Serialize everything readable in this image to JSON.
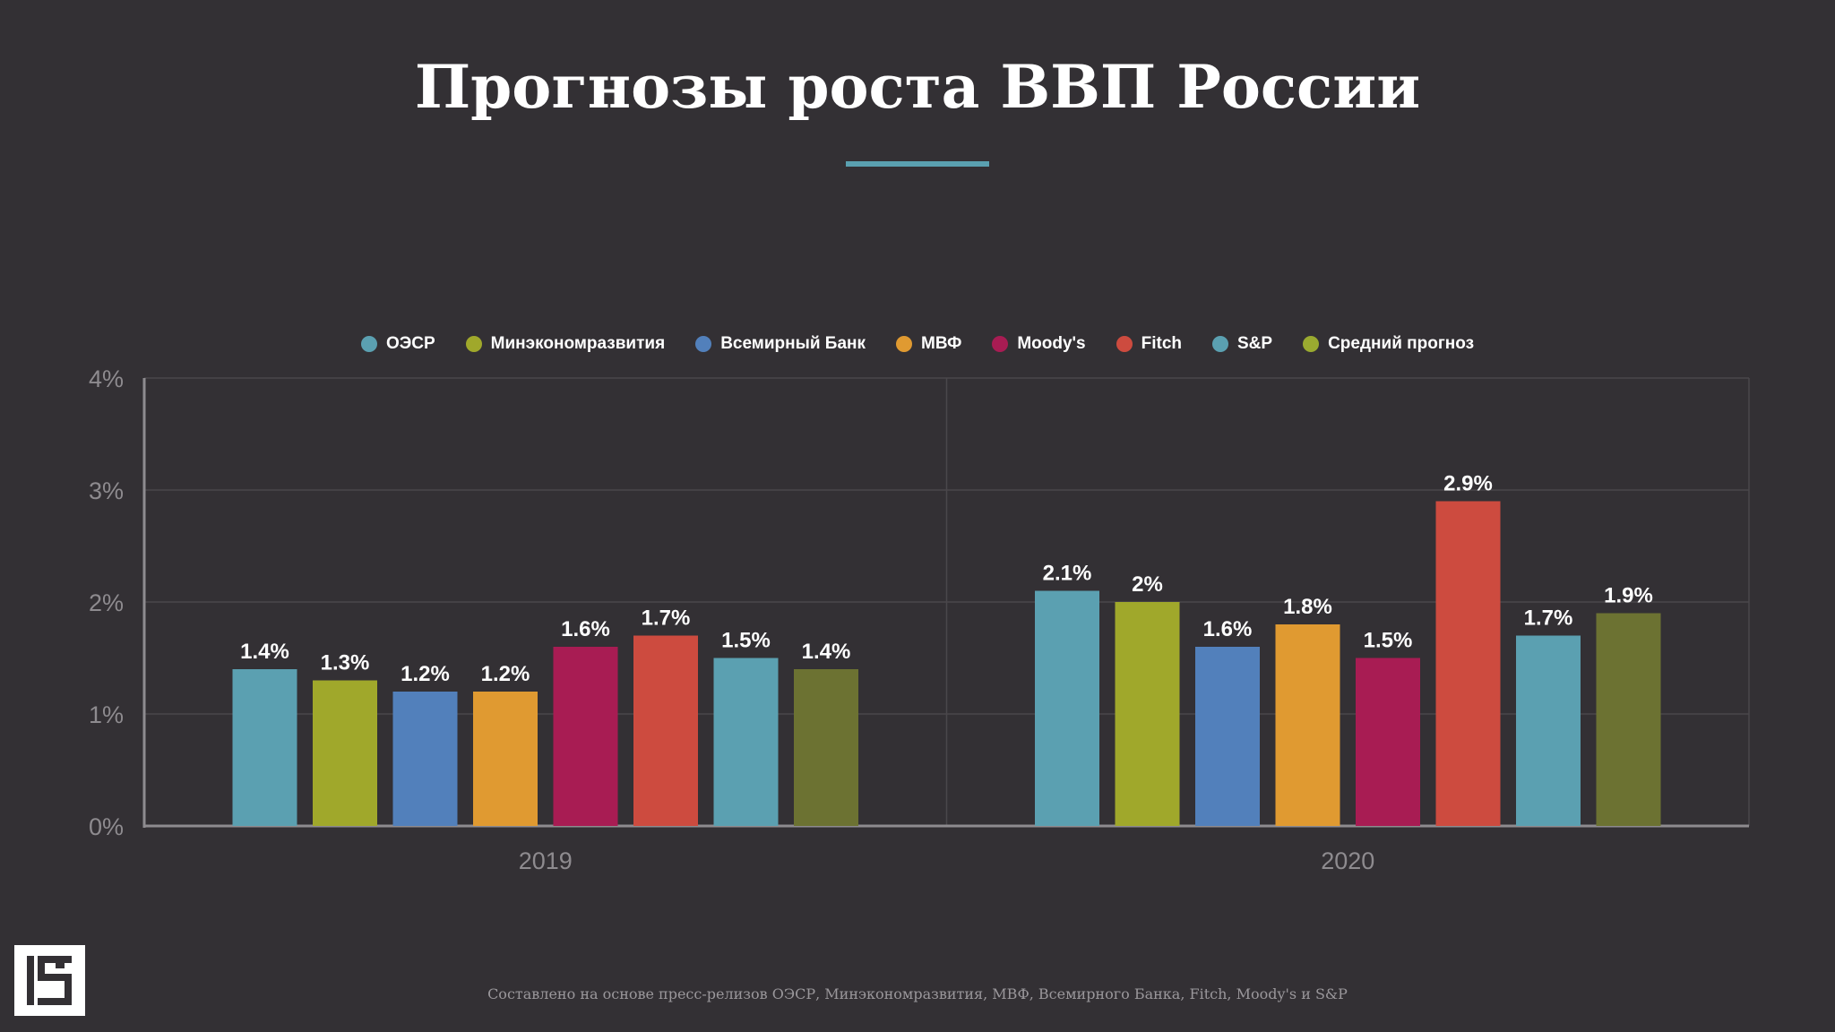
{
  "chart_data": {
    "type": "bar",
    "title": "Прогнозы роста ВВП России",
    "categories": [
      "2019",
      "2020"
    ],
    "ylim": [
      0,
      4
    ],
    "yticks": [
      "0%",
      "1%",
      "2%",
      "3%",
      "4%"
    ],
    "grid": true,
    "legend_position": "top",
    "series": [
      {
        "name": "ОЭСР",
        "color": "#5ba0b1",
        "values": [
          1.4,
          2.1
        ],
        "labels": [
          "1.4%",
          "2.1%"
        ]
      },
      {
        "name": "Минэкономразвития",
        "color": "#a0a82b",
        "values": [
          1.3,
          2.0
        ],
        "labels": [
          "1.3%",
          "2%"
        ]
      },
      {
        "name": "Всемирный Банк",
        "color": "#5280bb",
        "values": [
          1.2,
          1.6
        ],
        "labels": [
          "1.2%",
          "1.6%"
        ]
      },
      {
        "name": "МВФ",
        "color": "#e09a31",
        "values": [
          1.2,
          1.8
        ],
        "labels": [
          "1.2%",
          "1.8%"
        ]
      },
      {
        "name": "Moody's",
        "color": "#a81c53",
        "values": [
          1.6,
          1.5
        ],
        "labels": [
          "1.6%",
          "1.5%"
        ]
      },
      {
        "name": "Fitch",
        "color": "#cd4b3f",
        "values": [
          1.7,
          2.9
        ],
        "labels": [
          "1.7%",
          "2.9%"
        ]
      },
      {
        "name": "S&P",
        "color": "#5ba0b1",
        "values": [
          1.5,
          1.7
        ],
        "labels": [
          "1.5%",
          "1.7%"
        ]
      },
      {
        "name": "Средний прогноз",
        "color": "#6c7232",
        "legend_color": "#9aaa30",
        "values": [
          1.4,
          1.9
        ],
        "labels": [
          "1.4%",
          "1.9%"
        ]
      }
    ]
  },
  "footer": "Составлено на основе пресс-релизов ОЭСР, Минэкономразвития, МВФ, Всемирного Банка, Fitch, Moody's и S&P",
  "logo": "IS"
}
